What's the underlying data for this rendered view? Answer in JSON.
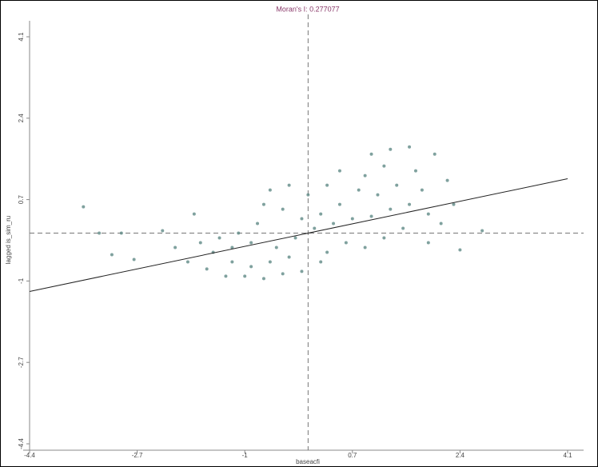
{
  "chart_data": {
    "type": "scatter",
    "title": "Moran's I: 0.277077",
    "x_label": "baseacfi",
    "y_label": "lagged is_sim_ru",
    "xlim": [
      -4.4,
      4.1
    ],
    "ylim": [
      -4.4,
      4.1
    ],
    "xticks": [
      -4.4,
      -2.7,
      -1,
      0.7,
      2.4,
      4.1
    ],
    "yticks": [
      -4.4,
      -2.7,
      -1,
      0.7,
      2.4,
      4.1
    ],
    "color": "#5f8a86",
    "ref_lines": {
      "x": 0,
      "y": 0
    },
    "fit_line": {
      "x": [
        -4.4,
        4.1
      ],
      "y": [
        -1.219,
        1.136
      ]
    },
    "x": [
      -3.55,
      -3.3,
      -2.95,
      -3.1,
      -2.75,
      2.75,
      2.4,
      2.0,
      1.6,
      1.3,
      1.0,
      0.5,
      -0.6,
      -1.8,
      -2.1,
      -1.9,
      -1.6,
      -1.3,
      -1.0,
      -0.7,
      -0.4,
      -0.1,
      0.2,
      -1.5,
      -1.2,
      -0.9,
      -0.5,
      -0.2,
      0.1,
      0.4,
      0.7,
      1.0,
      1.3,
      1.6,
      1.9,
      2.1,
      1.8,
      1.4,
      1.1,
      0.8,
      0.5,
      0.2,
      -0.1,
      -0.4,
      -0.8,
      -1.1,
      -1.4,
      -1.7,
      0.9,
      1.2,
      1.5,
      0.6,
      0.3,
      -0.3,
      -0.6,
      -0.9,
      -1.2,
      1.7,
      2.2,
      0.0,
      -0.3,
      0.3,
      1.9,
      2.3,
      -2.3,
      -0.7,
      1.2,
      0.9
    ],
    "values": [
      0.55,
      0.0,
      0.0,
      -0.45,
      -0.55,
      0.05,
      -0.35,
      1.65,
      1.8,
      1.75,
      1.65,
      1.3,
      0.9,
      0.4,
      -0.3,
      -0.6,
      -0.75,
      -0.9,
      -0.9,
      -0.95,
      -0.85,
      -0.8,
      -0.6,
      -0.4,
      -0.3,
      -0.2,
      -0.3,
      -0.1,
      0.1,
      0.2,
      0.3,
      0.35,
      0.5,
      0.6,
      0.4,
      0.2,
      0.9,
      1.0,
      0.8,
      0.9,
      0.6,
      0.4,
      0.3,
      0.5,
      0.2,
      0.0,
      -0.1,
      -0.2,
      -0.3,
      -0.1,
      0.1,
      -0.2,
      -0.4,
      -0.5,
      -0.6,
      -0.7,
      -0.6,
      1.3,
      1.1,
      0.8,
      1.0,
      1.0,
      -0.2,
      0.6,
      0.05,
      0.6,
      1.4,
      1.2
    ]
  }
}
